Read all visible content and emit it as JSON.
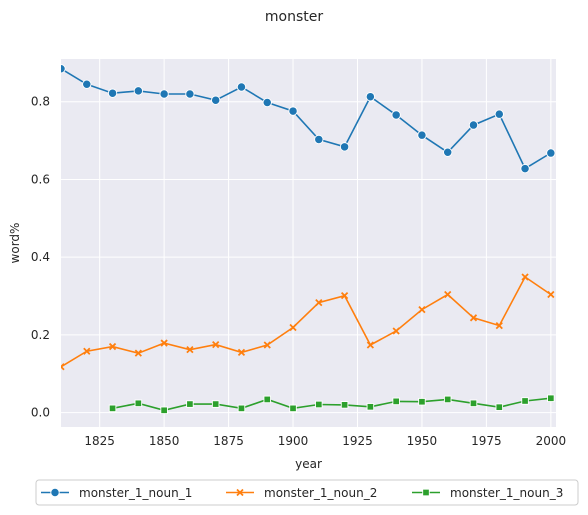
{
  "chart_data": {
    "type": "line",
    "title": "monster",
    "xlabel": "year",
    "ylabel": "word%",
    "xlim": [
      1810,
      2002
    ],
    "ylim": [
      -0.037,
      0.91
    ],
    "x_ticks": [
      1825,
      1850,
      1875,
      1900,
      1925,
      1950,
      1975,
      2000
    ],
    "y_ticks": [
      0.0,
      0.2,
      0.4,
      0.6,
      0.8
    ],
    "grid": true,
    "legend_placement": "bottom-center",
    "background_color": "#eaeaf2",
    "series": [
      {
        "name": "monster_1_noun_1",
        "color": "#1f77b4",
        "marker": "circle",
        "x": [
          1810,
          1820,
          1830,
          1840,
          1850,
          1860,
          1870,
          1880,
          1890,
          1900,
          1910,
          1920,
          1930,
          1940,
          1950,
          1960,
          1970,
          1980,
          1990,
          2000
        ],
        "values": [
          0.885,
          0.845,
          0.822,
          0.828,
          0.82,
          0.82,
          0.804,
          0.838,
          0.798,
          0.776,
          0.703,
          0.684,
          0.813,
          0.766,
          0.714,
          0.67,
          0.74,
          0.768,
          0.628,
          0.668
        ]
      },
      {
        "name": "monster_1_noun_2",
        "color": "#ff7f0e",
        "marker": "x",
        "x": [
          1810,
          1820,
          1830,
          1840,
          1850,
          1860,
          1870,
          1880,
          1890,
          1900,
          1910,
          1920,
          1930,
          1940,
          1950,
          1960,
          1970,
          1980,
          1990,
          2000
        ],
        "values": [
          0.118,
          0.158,
          0.17,
          0.153,
          0.179,
          0.162,
          0.175,
          0.155,
          0.174,
          0.219,
          0.283,
          0.301,
          0.174,
          0.21,
          0.265,
          0.304,
          0.244,
          0.224,
          0.349,
          0.304
        ]
      },
      {
        "name": "monster_1_noun_3",
        "color": "#2ca02c",
        "marker": "square",
        "x": [
          1830,
          1840,
          1850,
          1860,
          1870,
          1880,
          1890,
          1900,
          1910,
          1920,
          1930,
          1940,
          1950,
          1960,
          1970,
          1980,
          1990,
          2000
        ],
        "values": [
          0.011,
          0.024,
          0.006,
          0.022,
          0.022,
          0.011,
          0.034,
          0.011,
          0.021,
          0.02,
          0.015,
          0.029,
          0.028,
          0.034,
          0.024,
          0.014,
          0.03,
          0.037
        ]
      }
    ]
  }
}
